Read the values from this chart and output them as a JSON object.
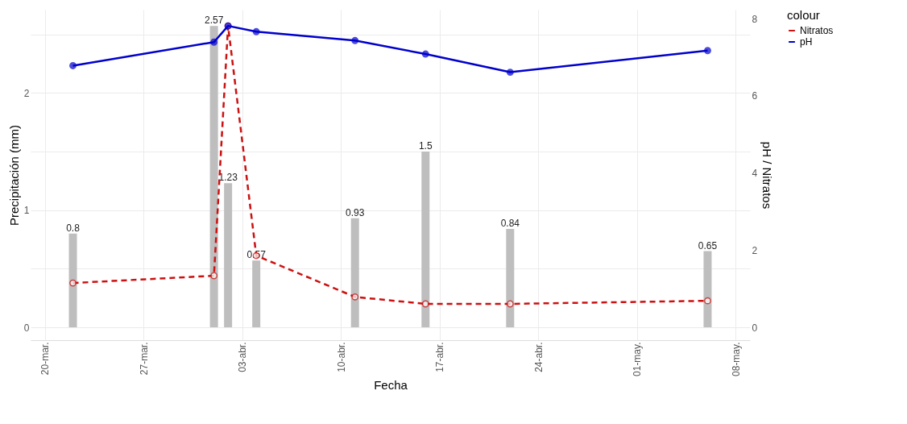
{
  "chart_data": {
    "type": "bar",
    "xlabel": "Fecha",
    "ylabel": "Precipitación (mm)",
    "y2label": "pH / Nitratos",
    "legend_title": "colour",
    "x": [
      "--03-22",
      "--04-01",
      "--04-02",
      "--04-04",
      "--04-11",
      "--04-16",
      "--04-22",
      "--05-06"
    ],
    "series": [
      {
        "color": "#bebebe",
        "values": [
          0.8,
          2.57,
          1.23,
          0.57,
          0.93,
          1.5,
          0.84,
          0.65
        ],
        "value_labels": [
          "0.8",
          "2.57",
          "1.23",
          "0.57",
          "0.93",
          "1.5",
          "0.84",
          "0.65"
        ]
      },
      {
        "type": "line",
        "name": "Nitratos",
        "axis": "y2",
        "color": "#cc1111",
        "line_style": "dashed",
        "values": [
          1.15,
          1.34,
          7.81,
          1.86,
          0.79,
          0.61,
          0.61,
          0.69
        ]
      },
      {
        "type": "line",
        "name": "pH",
        "axis": "y2",
        "color": "#0000cc",
        "line_style": "solid",
        "values": [
          6.78,
          7.39,
          7.81,
          7.66,
          7.43,
          7.08,
          6.61,
          7.17
        ]
      }
    ],
    "xlim": [
      "--03-19",
      "--05-09"
    ],
    "xticks": [
      {
        "value": "--03-20",
        "label": "20-mar."
      },
      {
        "value": "--03-27",
        "label": "27-mar."
      },
      {
        "value": "--04-03",
        "label": "03-abr."
      },
      {
        "value": "--04-10",
        "label": "10-abr."
      },
      {
        "value": "--04-17",
        "label": "17-abr."
      },
      {
        "value": "--04-24",
        "label": "24-abr."
      },
      {
        "value": "--05-01",
        "label": "01-may."
      },
      {
        "value": "--05-08",
        "label": "08-may."
      }
    ],
    "ylim": [
      -0.11,
      2.71
    ],
    "yticks": [
      0,
      {
        "value": 0.5,
        "label": null
      },
      1,
      {
        "value": 1.5,
        "label": null
      },
      2,
      {
        "value": 2.5,
        "label": null
      }
    ],
    "y2lim": [
      -0.33,
      8.23
    ],
    "y2ticks": [
      0,
      2,
      4,
      6,
      8
    ],
    "grid": true,
    "legend": "right",
    "marker": "circle"
  }
}
